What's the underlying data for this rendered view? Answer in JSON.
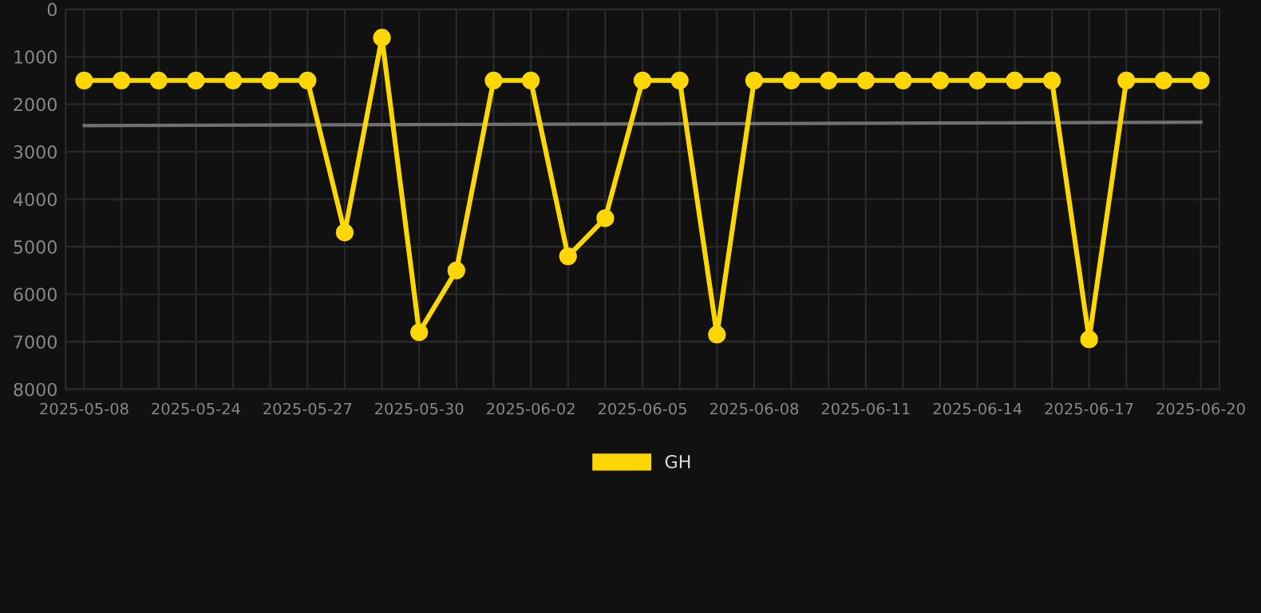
{
  "chart_data": {
    "type": "line",
    "categories": [
      "2025-05-08",
      null,
      null,
      "2025-05-24",
      null,
      null,
      "2025-05-27",
      null,
      null,
      "2025-05-30",
      null,
      null,
      "2025-06-02",
      null,
      null,
      "2025-06-05",
      null,
      null,
      "2025-06-08",
      null,
      null,
      "2025-06-11",
      null,
      null,
      "2025-06-14",
      null,
      null,
      "2025-06-17",
      null,
      null,
      "2025-06-20"
    ],
    "series": [
      {
        "name": "GH",
        "color": "#ffd700",
        "marker": "circle",
        "values": [
          1500,
          1500,
          1500,
          1500,
          1500,
          1500,
          1500,
          4700,
          600,
          6800,
          5500,
          1500,
          1500,
          5200,
          4400,
          1500,
          1500,
          6850,
          1500,
          1500,
          1500,
          1500,
          1500,
          1500,
          1500,
          1500,
          1500,
          6950,
          1500,
          1500,
          1500
        ]
      },
      {
        "type": "line",
        "color": "#707070",
        "marker": "none",
        "values": [
          2450,
          null,
          null,
          null,
          null,
          null,
          null,
          null,
          null,
          null,
          null,
          null,
          null,
          null,
          null,
          null,
          null,
          null,
          null,
          null,
          null,
          null,
          null,
          null,
          null,
          null,
          null,
          null,
          null,
          null,
          2380
        ]
      }
    ],
    "ylim": [
      8000,
      0
    ],
    "yticks": [
      0,
      1000,
      2000,
      3000,
      4000,
      5000,
      6000,
      7000,
      8000
    ],
    "grid": true,
    "legend": "bottom",
    "line_style": "solid"
  }
}
